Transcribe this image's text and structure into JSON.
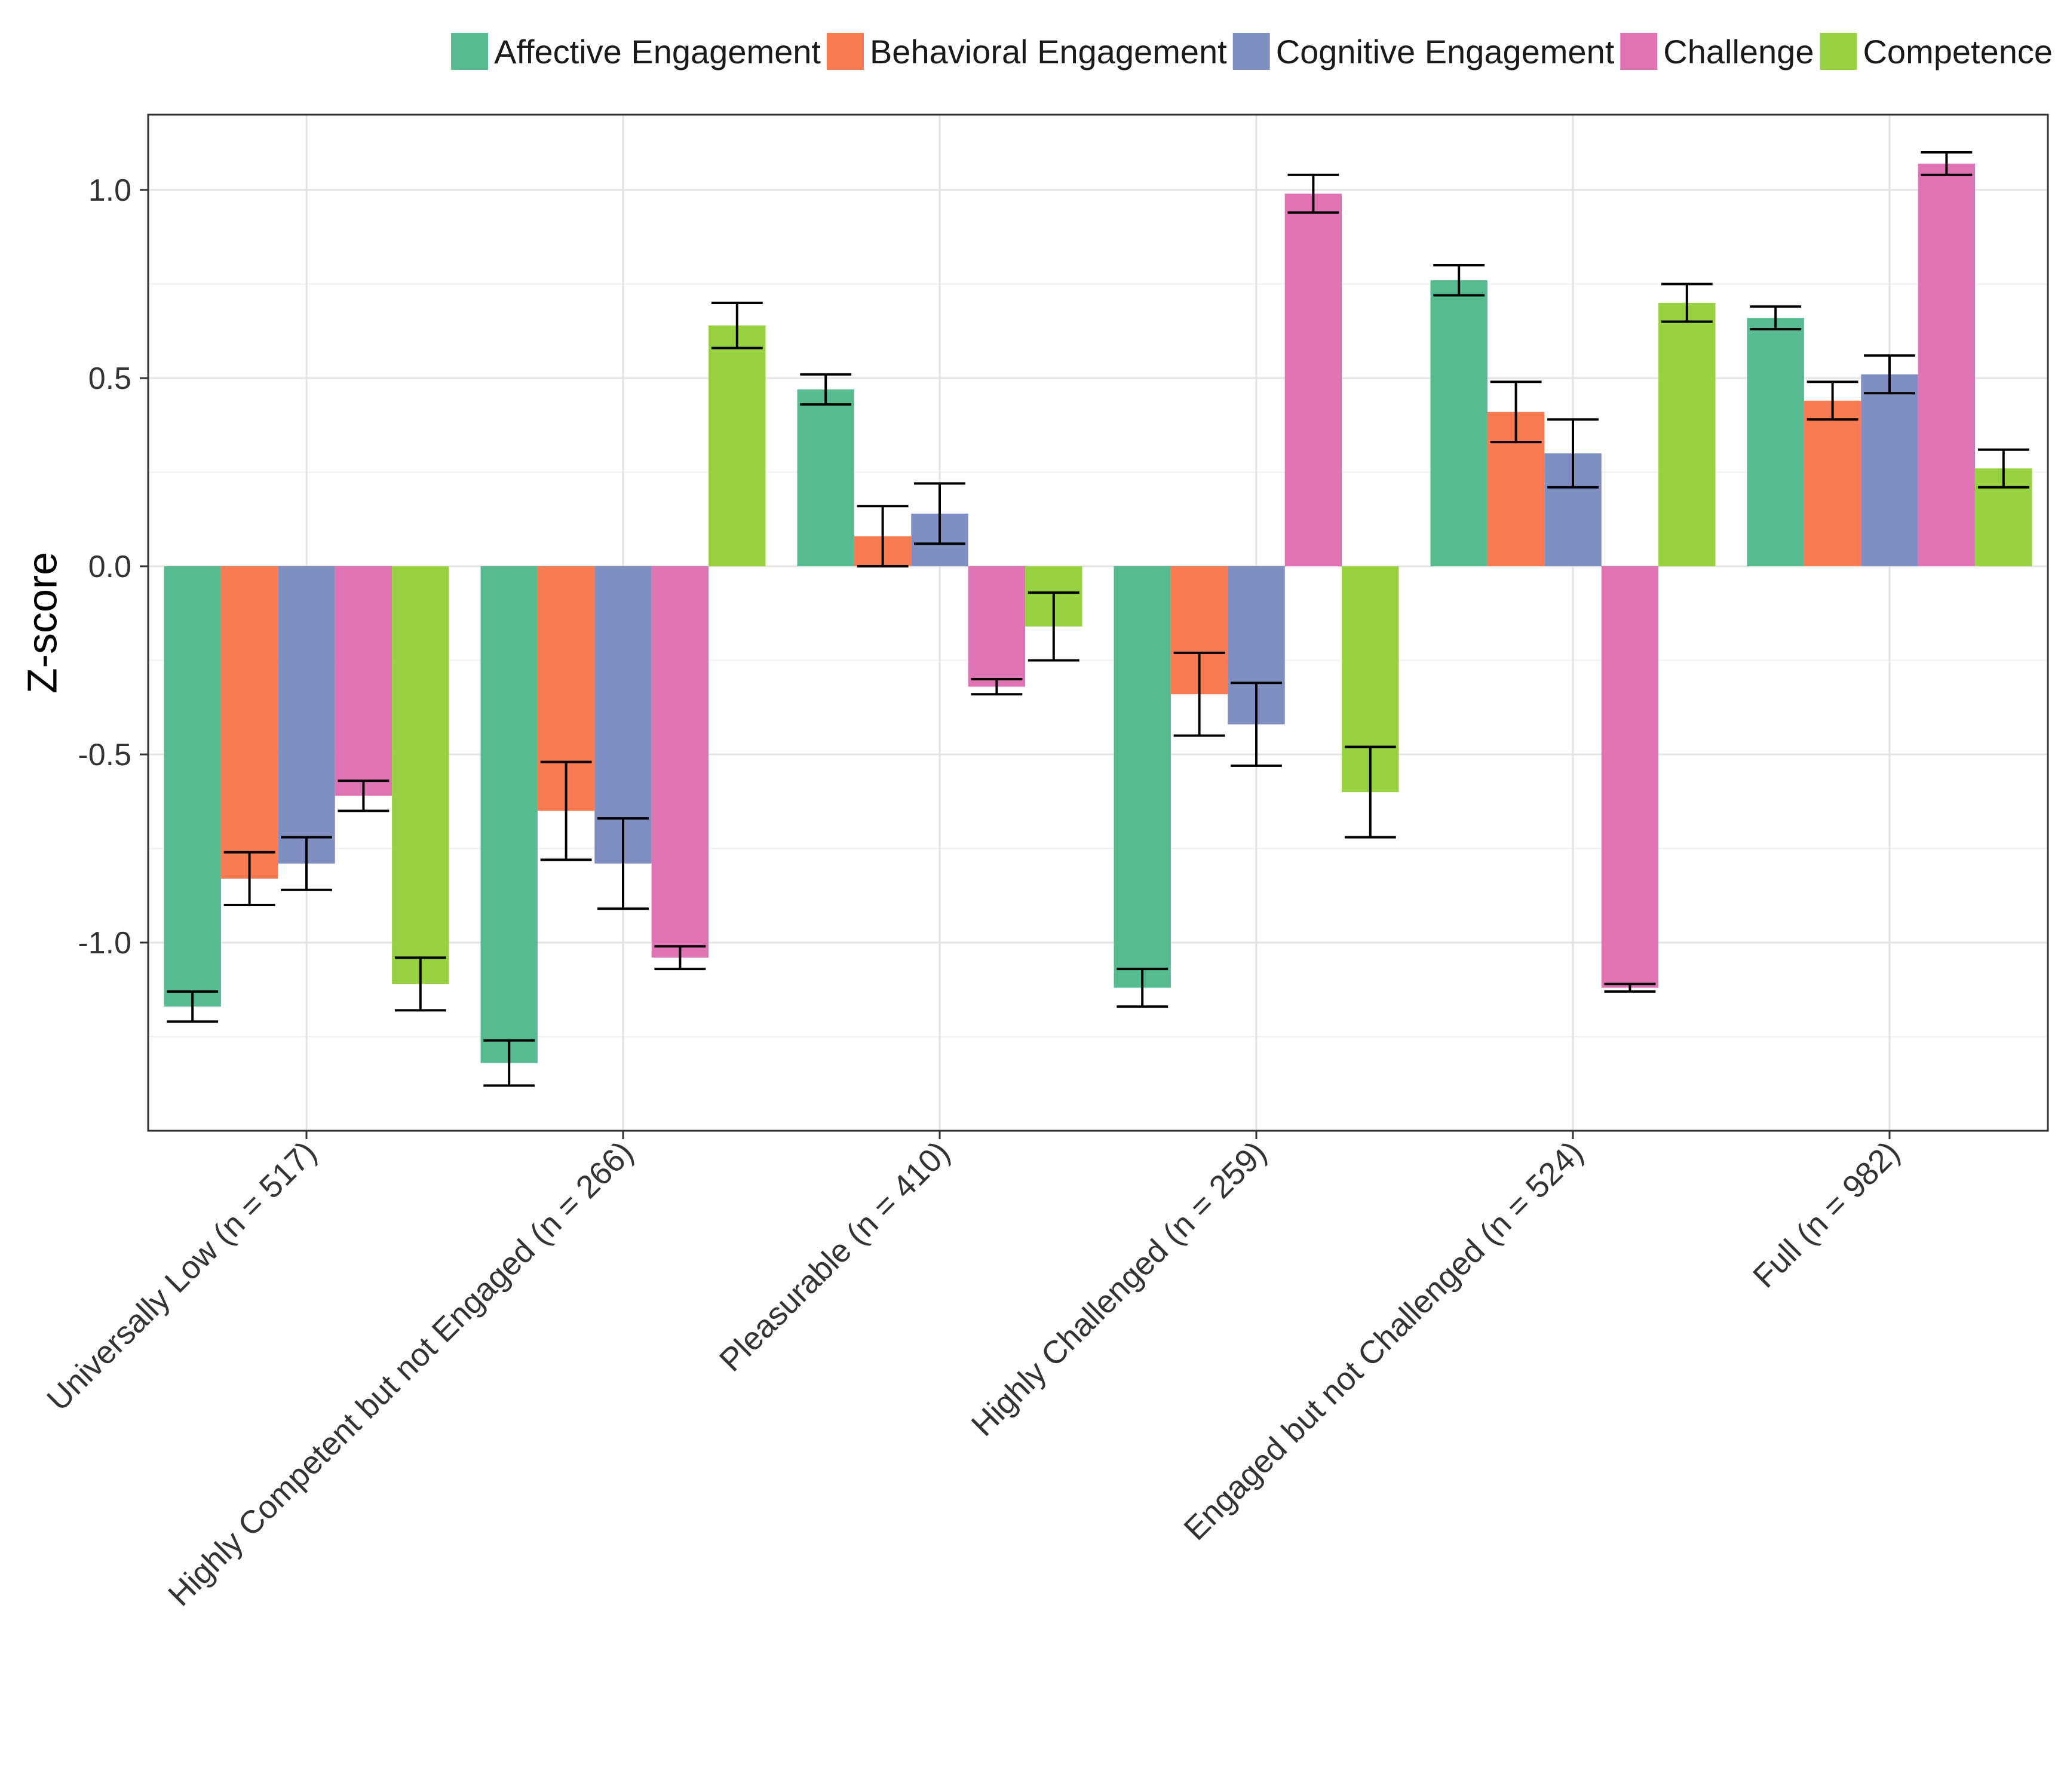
{
  "chart_data": {
    "type": "bar",
    "title": "",
    "xlabel": "",
    "ylabel": "Z-score",
    "ylim": [
      -1.5,
      1.2
    ],
    "yticks": [
      -1.0,
      -0.5,
      0.0,
      0.5,
      1.0
    ],
    "ytick_labels": [
      "-1.0",
      "-0.5",
      "0.0",
      "0.5",
      "1.0"
    ],
    "grid": true,
    "legend_position": "top",
    "categories": [
      "Universally Low (n = 517)",
      "Highly Competent but not Engaged (n = 266)",
      "Pleasurable (n = 410)",
      "Highly Challenged (n = 259)",
      "Engaged but not Challenged (n = 524)",
      "Full (n = 982)"
    ],
    "series": [
      {
        "name": "Affective Engagement",
        "color": "#57BB92",
        "values": [
          -1.17,
          -1.32,
          0.47,
          -1.12,
          0.76,
          0.66
        ],
        "errors": [
          0.04,
          0.06,
          0.04,
          0.05,
          0.04,
          0.03
        ]
      },
      {
        "name": "Behavioral Engagement",
        "color": "#F87B51",
        "values": [
          -0.83,
          -0.65,
          0.08,
          -0.34,
          0.41,
          0.44
        ],
        "errors": [
          0.07,
          0.13,
          0.08,
          0.11,
          0.08,
          0.05
        ]
      },
      {
        "name": "Cognitive Engagement",
        "color": "#7F8FC1",
        "values": [
          -0.79,
          -0.79,
          0.14,
          -0.42,
          0.3,
          0.51
        ],
        "errors": [
          0.07,
          0.12,
          0.08,
          0.11,
          0.09,
          0.05
        ]
      },
      {
        "name": "Challenge",
        "color": "#E073B4",
        "values": [
          -0.61,
          -1.04,
          -0.32,
          0.99,
          -1.12,
          1.07
        ],
        "errors": [
          0.04,
          0.03,
          0.02,
          0.05,
          0.01,
          0.03
        ]
      },
      {
        "name": "Competence",
        "color": "#98D243",
        "values": [
          -1.11,
          0.64,
          -0.16,
          -0.6,
          0.7,
          0.26
        ],
        "errors": [
          0.07,
          0.06,
          0.09,
          0.12,
          0.05,
          0.05
        ]
      }
    ]
  }
}
